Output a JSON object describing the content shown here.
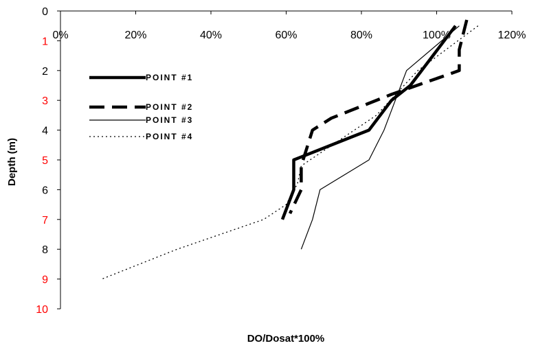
{
  "chart_data": {
    "type": "line",
    "title": "",
    "xlabel": "DO/Dosat*100%",
    "ylabel": "Depth (m)",
    "x_axis_position": "top",
    "y_inverted": true,
    "xlim": [
      0,
      120
    ],
    "ylim": [
      0,
      10
    ],
    "x_ticks": [
      "0%",
      "20%",
      "40%",
      "60%",
      "80%",
      "100%",
      "120%"
    ],
    "y_ticks": [
      "0",
      "1",
      "2",
      "3",
      "4",
      "5",
      "6",
      "7",
      "8",
      "9",
      "10"
    ],
    "y_tick_colors": [
      "#000000",
      "#ff0000",
      "#000000",
      "#ff0000",
      "#000000",
      "#ff0000",
      "#000000",
      "#ff0000",
      "#000000",
      "#ff0000",
      "#ff0000"
    ],
    "grid": false,
    "legend_position": "left-middle",
    "series": [
      {
        "name": "POINT #1",
        "style": "thick-solid",
        "color": "#000000",
        "points": [
          [
            105,
            0.5
          ],
          [
            93,
            2.5
          ],
          [
            88,
            3.0
          ],
          [
            82,
            4.0
          ],
          [
            64,
            4.9
          ],
          [
            62,
            5.0
          ],
          [
            62,
            6.0
          ],
          [
            59,
            7.0
          ]
        ]
      },
      {
        "name": "POINT #2",
        "style": "thick-dashed",
        "color": "#000000",
        "points": [
          [
            108,
            0.3
          ],
          [
            106,
            1.3
          ],
          [
            106,
            2.0
          ],
          [
            88,
            2.8
          ],
          [
            72,
            3.6
          ],
          [
            67,
            4.0
          ],
          [
            64,
            5.2
          ],
          [
            64,
            6.0
          ],
          [
            61,
            6.8
          ]
        ]
      },
      {
        "name": "POINT #3",
        "style": "thin-solid",
        "color": "#000000",
        "points": [
          [
            106,
            0.5
          ],
          [
            92,
            2.0
          ],
          [
            86,
            4.0
          ],
          [
            82,
            5.0
          ],
          [
            69,
            6.0
          ],
          [
            67,
            7.0
          ],
          [
            64,
            8.0
          ]
        ]
      },
      {
        "name": "POINT #4",
        "style": "dotted",
        "color": "#000000",
        "points": [
          [
            111,
            0.5
          ],
          [
            95,
            2.0
          ],
          [
            84,
            3.5
          ],
          [
            64,
            5.2
          ],
          [
            63,
            5.8
          ],
          [
            60,
            6.5
          ],
          [
            54,
            7.0
          ],
          [
            31,
            8.0
          ],
          [
            11,
            9.0
          ]
        ]
      }
    ]
  }
}
